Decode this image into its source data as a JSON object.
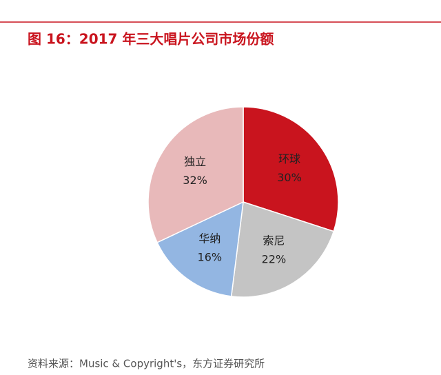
{
  "chart_data": {
    "type": "pie",
    "title": "图 16：2017 年三大唱片公司市场份额",
    "source": "资料来源：Music & Copyright's，东方证券研究所",
    "categories": [
      "环球",
      "索尼",
      "华纳",
      "独立"
    ],
    "values": [
      30,
      22,
      16,
      32
    ],
    "value_labels": [
      "30%",
      "22%",
      "16%",
      "32%"
    ],
    "colors": [
      "#c9141e",
      "#c4c4c4",
      "#93b6e2",
      "#e8b9ba"
    ]
  }
}
